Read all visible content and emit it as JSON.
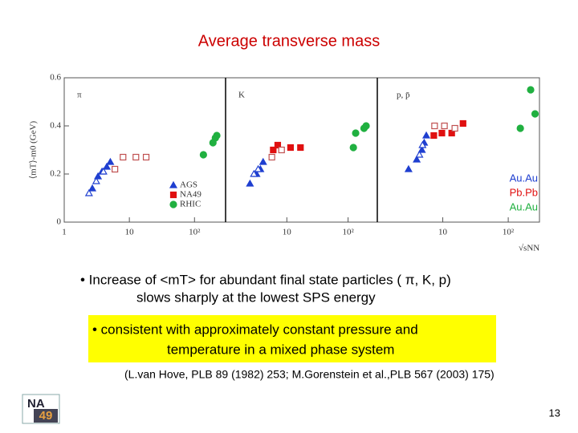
{
  "slide": {
    "title": "Average transverse mass",
    "bullet1": [
      "• Increase of <mT> for abundant final state particles ( π, K, p)",
      "slows sharply at the lowest SPS energy"
    ],
    "bullet2": [
      "• consistent with approximately constant pressure and",
      "temperature in a mixed phase system"
    ],
    "reference": "(L.van Hove, PLB 89 (1982) 253; M.Gorenstein et al.,PLB 567 (2003) 175)",
    "page_number": "13",
    "logo": [
      "NA",
      "49"
    ]
  },
  "chart_data": [
    {
      "type": "scatter",
      "panel_label": "π",
      "ylabel": "⟨mT⟩-m0 (GeV)",
      "xlog": true,
      "xlim": [
        1,
        300
      ],
      "ylim": [
        0,
        0.6
      ],
      "xticks": [
        1,
        10,
        {
          "value": 100,
          "label": "10²"
        }
      ],
      "yticks": [
        0,
        0.2,
        0.4,
        0.6
      ],
      "series": [
        {
          "name": "AGS",
          "color": "#1f3fd0",
          "marker": "triangle",
          "x": [
            2.7,
            3.3,
            3.8,
            4.5,
            5.1
          ],
          "values": [
            0.14,
            0.19,
            0.21,
            0.23,
            0.25
          ]
        },
        {
          "color": "#1f3fd0",
          "marker": "triangle",
          "open": true,
          "x": [
            2.4,
            3.1,
            4.0
          ],
          "values": [
            0.12,
            0.17,
            0.21
          ]
        },
        {
          "name": "NA49",
          "color": "#e01010",
          "marker": "square",
          "x": [],
          "values": []
        },
        {
          "color": "#c05050",
          "marker": "square",
          "open": true,
          "x": [
            6.0,
            8.0,
            12.6,
            18.1
          ],
          "values": [
            0.22,
            0.27,
            0.27,
            0.27
          ]
        },
        {
          "name": "RHIC",
          "color": "#20b040",
          "marker": "circle",
          "x": [
            137,
            192,
            209,
            220
          ],
          "values": [
            0.28,
            0.33,
            0.35,
            0.36
          ]
        }
      ]
    },
    {
      "type": "scatter",
      "panel_label": "K",
      "xlog": true,
      "xlim": [
        1,
        300
      ],
      "ylim": [
        0,
        0.6
      ],
      "xticks": [
        10,
        {
          "value": 100,
          "label": "10²"
        }
      ],
      "series": [
        {
          "color": "#1f3fd0",
          "marker": "triangle",
          "x": [
            2.5,
            3.2,
            3.7,
            4.1
          ],
          "values": [
            0.16,
            0.2,
            0.22,
            0.25
          ]
        },
        {
          "color": "#1f3fd0",
          "marker": "triangle",
          "open": true,
          "x": [
            2.9,
            3.4
          ],
          "values": [
            0.2,
            0.22
          ]
        },
        {
          "color": "#e01010",
          "marker": "square",
          "x": [
            6.0,
            7.1,
            11.5,
            16.7
          ],
          "values": [
            0.3,
            0.32,
            0.31,
            0.31
          ]
        },
        {
          "color": "#c05050",
          "marker": "square",
          "open": true,
          "x": [
            5.7,
            8.2
          ],
          "values": [
            0.27,
            0.3
          ]
        },
        {
          "color": "#20b040",
          "marker": "circle",
          "x": [
            122,
            133,
            182,
            197
          ],
          "values": [
            0.31,
            0.37,
            0.39,
            0.4
          ]
        }
      ]
    },
    {
      "type": "scatter",
      "panel_label": "p, p̄",
      "xlabel": "√sNN",
      "xlog": true,
      "xlim": [
        1,
        300
      ],
      "ylim": [
        0,
        0.6
      ],
      "xticks": [
        10,
        {
          "value": 100,
          "label": "10²"
        }
      ],
      "annotations": [
        {
          "text": "Au.Au",
          "color": "#1f3fd0"
        },
        {
          "text": "Pb.Pb",
          "color": "#e01010"
        },
        {
          "text": "Au.Au",
          "color": "#20b040"
        }
      ],
      "series": [
        {
          "color": "#1f3fd0",
          "marker": "triangle",
          "x": [
            3.0,
            4.0,
            4.8,
            5.2,
            5.6
          ],
          "values": [
            0.22,
            0.26,
            0.3,
            0.33,
            0.36
          ]
        },
        {
          "color": "#1f3fd0",
          "marker": "triangle",
          "open": true,
          "x": [
            4.4,
            4.9
          ],
          "values": [
            0.28,
            0.32
          ]
        },
        {
          "color": "#e01010",
          "marker": "square",
          "x": [
            7.3,
            9.7,
            13.7,
            20.4
          ],
          "values": [
            0.36,
            0.37,
            0.37,
            0.41
          ]
        },
        {
          "color": "#c05050",
          "marker": "square",
          "open": true,
          "x": [
            7.5,
            10.6,
            15.3
          ],
          "values": [
            0.4,
            0.4,
            0.39
          ]
        },
        {
          "color": "#20b040",
          "marker": "circle",
          "x": [
            153,
            220,
            257
          ],
          "values": [
            0.39,
            0.55,
            0.45
          ]
        }
      ]
    }
  ]
}
